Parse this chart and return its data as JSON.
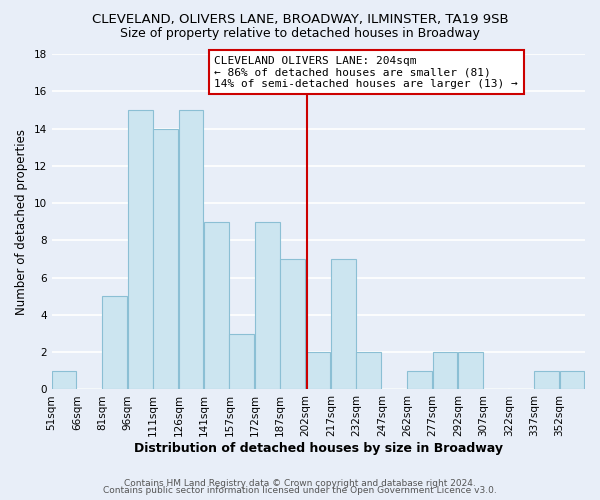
{
  "title": "CLEVELAND, OLIVERS LANE, BROADWAY, ILMINSTER, TA19 9SB",
  "subtitle": "Size of property relative to detached houses in Broadway",
  "xlabel": "Distribution of detached houses by size in Broadway",
  "ylabel": "Number of detached properties",
  "footer1": "Contains HM Land Registry data © Crown copyright and database right 2024.",
  "footer2": "Contains public sector information licensed under the Open Government Licence v3.0.",
  "bin_labels": [
    "51sqm",
    "66sqm",
    "81sqm",
    "96sqm",
    "111sqm",
    "126sqm",
    "141sqm",
    "157sqm",
    "172sqm",
    "187sqm",
    "202sqm",
    "217sqm",
    "232sqm",
    "247sqm",
    "262sqm",
    "277sqm",
    "292sqm",
    "307sqm",
    "322sqm",
    "337sqm",
    "352sqm"
  ],
  "bar_values": [
    1,
    0,
    5,
    15,
    14,
    15,
    9,
    3,
    9,
    7,
    2,
    7,
    2,
    0,
    1,
    2,
    2,
    0,
    0,
    1,
    1
  ],
  "bar_color": "#cce5f0",
  "bar_edge_color": "#8bbfd4",
  "marker_label": "CLEVELAND OLIVERS LANE: 204sqm",
  "annotation_line1": "← 86% of detached houses are smaller (81)",
  "annotation_line2": "14% of semi-detached houses are larger (13) →",
  "annotation_box_color": "#ffffff",
  "annotation_box_edge": "#cc0000",
  "marker_line_color": "#cc0000",
  "ylim": [
    0,
    18
  ],
  "yticks": [
    0,
    2,
    4,
    6,
    8,
    10,
    12,
    14,
    16,
    18
  ],
  "background_color": "#e8eef8",
  "grid_color": "#ffffff",
  "title_fontsize": 9.5,
  "subtitle_fontsize": 9,
  "xlabel_fontsize": 9,
  "ylabel_fontsize": 8.5,
  "tick_fontsize": 7.5,
  "footer_fontsize": 6.5
}
